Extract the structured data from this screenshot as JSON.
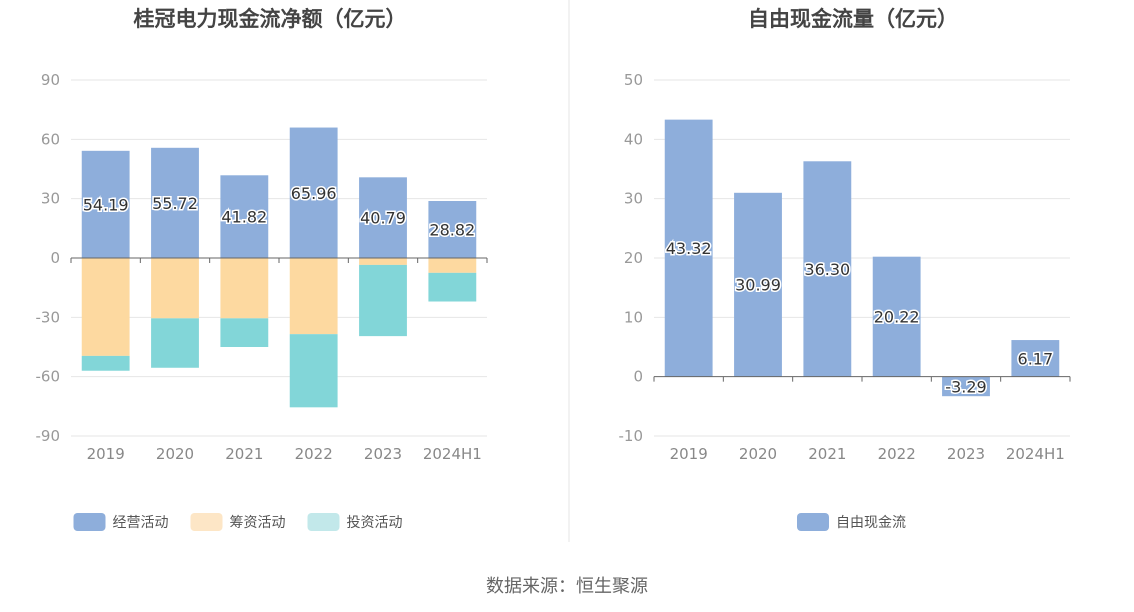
{
  "chart_data": [
    {
      "type": "bar",
      "stacked": true,
      "title": "桂冠电力现金流净额（亿元）",
      "categories": [
        "2019",
        "2020",
        "2021",
        "2022",
        "2023",
        "2024H1"
      ],
      "y_ticks": [
        "90",
        "60",
        "30",
        "0",
        "-30",
        "-60",
        "-90"
      ],
      "ylim": [
        -90,
        90
      ],
      "series": [
        {
          "name": "经营活动",
          "color": "#8eaedb",
          "values": [
            54.19,
            55.72,
            41.82,
            65.96,
            40.79,
            28.82
          ],
          "labeled": true
        },
        {
          "name": "筹资活动",
          "color": "#fdd9a0",
          "values": [
            -49.5,
            -30.5,
            -30.5,
            -38.5,
            -3.5,
            -7.5
          ],
          "labeled": false
        },
        {
          "name": "投资活动",
          "color": "#82d6d8",
          "values": [
            -7.5,
            -25.0,
            -14.5,
            -37.0,
            -36.0,
            -14.5
          ],
          "labeled": false
        }
      ],
      "legend_colors": [
        "#8eaedb",
        "#fde6c6",
        "#c2e8ea"
      ],
      "legend_position": "bottom"
    },
    {
      "type": "bar",
      "title": "自由现金流量（亿元）",
      "categories": [
        "2019",
        "2020",
        "2021",
        "2022",
        "2023",
        "2024H1"
      ],
      "y_ticks": [
        "50",
        "40",
        "30",
        "20",
        "10",
        "0",
        "-10"
      ],
      "ylim": [
        -10,
        50
      ],
      "series": [
        {
          "name": "自由现金流",
          "color": "#8eaedb",
          "values": [
            43.32,
            30.99,
            36.3,
            20.22,
            -3.29,
            6.17
          ],
          "labels": [
            "43.32",
            "30.99",
            "36.30",
            "20.22",
            "-3.29",
            "6.17"
          ],
          "labeled": true
        }
      ],
      "legend_colors": [
        "#8eaedb"
      ],
      "legend_position": "bottom"
    }
  ],
  "footer": {
    "source": "数据来源：恒生聚源"
  }
}
